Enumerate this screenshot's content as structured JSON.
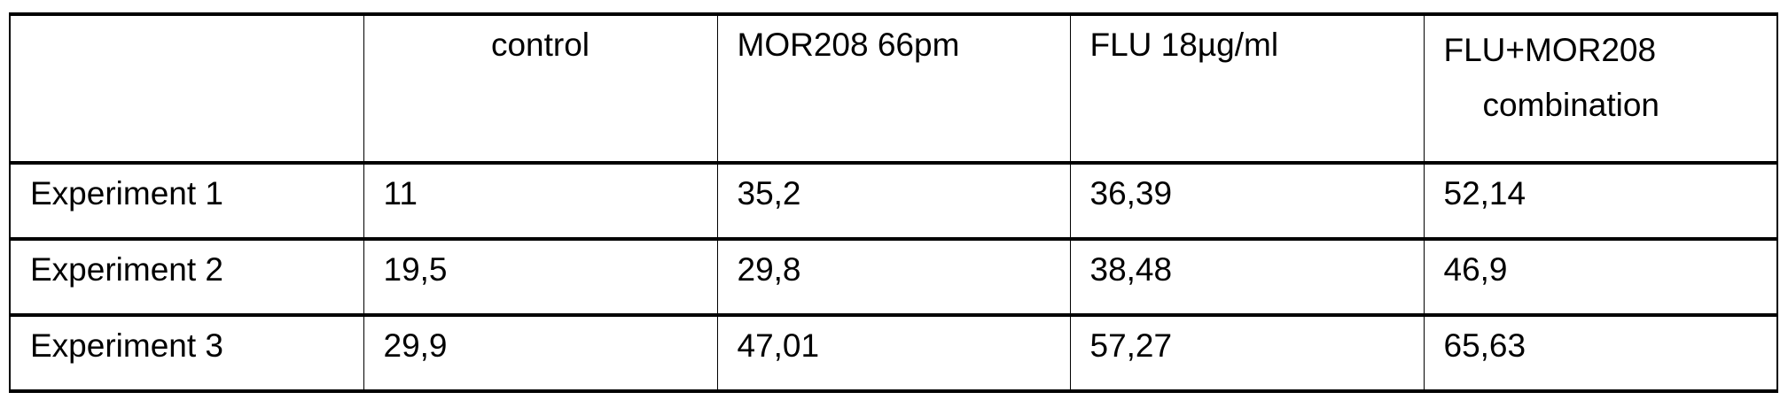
{
  "table": {
    "headers": [
      "",
      "control",
      "MOR208 66pm",
      "FLU 18µg/ml",
      "FLU+MOR208 combination"
    ],
    "header_last_lines": [
      "FLU+MOR208",
      "combination"
    ],
    "rows": [
      [
        "Experiment 1",
        "11",
        "35,2",
        "36,39",
        "52,14"
      ],
      [
        "Experiment 2",
        "19,5",
        "29,8",
        "38,48",
        "46,9"
      ],
      [
        "Experiment 3",
        "29,9",
        "47,01",
        "57,27",
        "65,63"
      ]
    ]
  }
}
